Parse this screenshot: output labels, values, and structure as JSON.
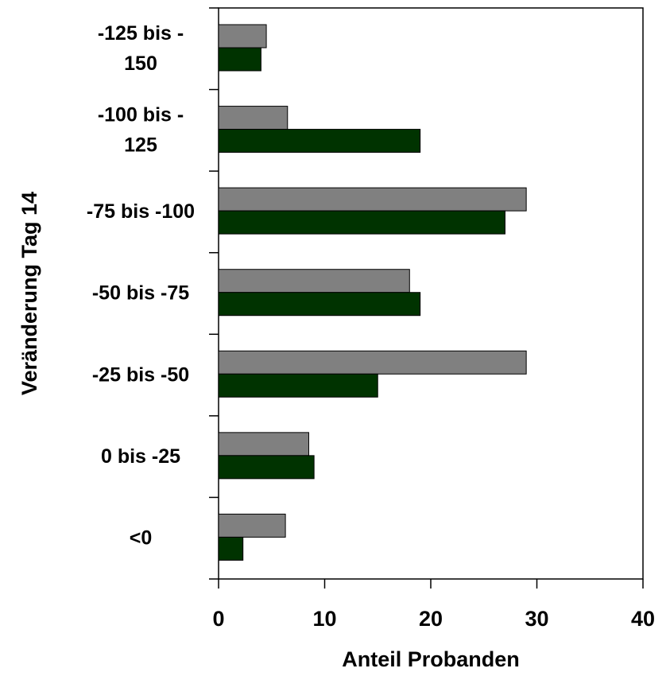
{
  "chart_data": {
    "type": "bar",
    "orientation": "horizontal",
    "categories": [
      [
        "-125 bis -",
        "150"
      ],
      [
        "-100 bis -",
        "125"
      ],
      [
        "-75 bis -100"
      ],
      [
        "-50 bis -75"
      ],
      [
        "-25 bis -50"
      ],
      [
        "0 bis -25"
      ],
      [
        "<0"
      ]
    ],
    "series": [
      {
        "values": [
          4.5,
          6.5,
          29,
          18,
          29,
          8.5,
          6.3
        ]
      },
      {
        "values": [
          4,
          19,
          27,
          19,
          15,
          9,
          2.3
        ]
      }
    ],
    "xlabel": "Anteil Probanden",
    "ylabel": "Veränderung Tag 14",
    "xlim": [
      0,
      40
    ],
    "xticks": [
      "0",
      "10",
      "20",
      "30",
      "40"
    ],
    "grid": false,
    "legend": "none"
  },
  "colors": {
    "series_0": "#808080",
    "series_1": "#003300",
    "bar_stroke": "#000000",
    "axis": "#000000"
  }
}
